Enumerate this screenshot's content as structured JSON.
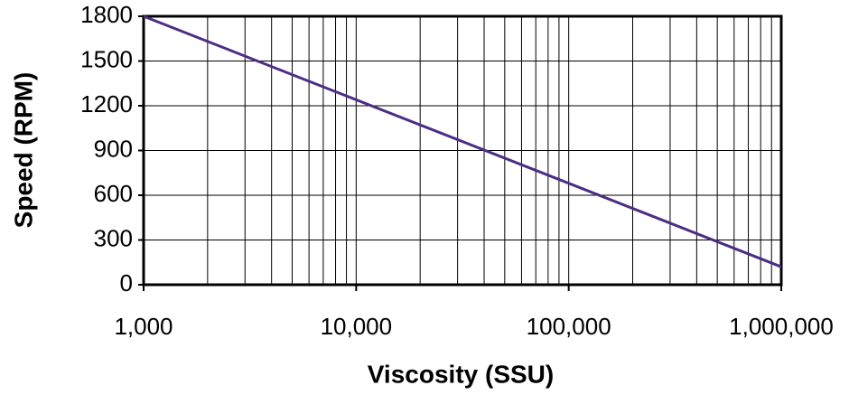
{
  "chart_data": {
    "type": "line",
    "x_label": "Viscosity (SSU)",
    "y_label": "Speed (RPM)",
    "x": [
      1000,
      1000000
    ],
    "series": [
      {
        "values": [
          1800,
          120
        ],
        "color": "#4b2e83"
      }
    ],
    "xlim": [
      1000,
      1000000
    ],
    "xscale": "log",
    "xticks": [
      {
        "value": 1000,
        "label": "1,000"
      },
      {
        "value": 10000,
        "label": "10,000"
      },
      {
        "value": 100000,
        "label": "100,000"
      },
      {
        "value": 1000000,
        "label": "1,000,000"
      }
    ],
    "ylim": [
      0,
      1800
    ],
    "yticks": [
      0,
      300,
      600,
      900,
      1200,
      1500,
      1800
    ],
    "grid": true,
    "minor_grid": true
  }
}
